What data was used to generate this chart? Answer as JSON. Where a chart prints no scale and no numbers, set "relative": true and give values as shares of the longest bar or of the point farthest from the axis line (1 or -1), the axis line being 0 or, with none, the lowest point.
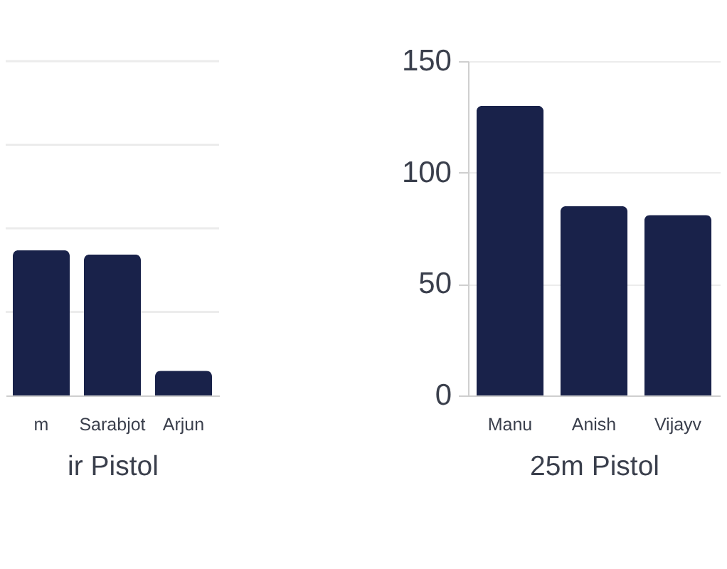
{
  "chart_data": [
    {
      "type": "bar",
      "xlabel": "ir Pistol",
      "categories": [
        "m",
        "Sarabjot",
        "Arjun"
      ],
      "values": [
        1,
        0.97,
        0.17
      ],
      "relative": true,
      "color": "#19224a",
      "ref_lines": [
        {
          "axis": "y",
          "value": 0.575,
          "color": "#ececec"
        },
        {
          "axis": "y",
          "value": 1.15,
          "color": "#ececec"
        },
        {
          "axis": "y",
          "value": 1.725,
          "color": "#ececec"
        },
        {
          "axis": "y",
          "value": 2.3,
          "color": "#ececec"
        }
      ]
    },
    {
      "type": "bar",
      "xlabel": "25m Pistol",
      "categories": [
        "Manu",
        "Anish",
        "Vijayv"
      ],
      "values": [
        130,
        85,
        81
      ],
      "color": "#19224a",
      "ylim": [
        0,
        150
      ],
      "yticks": [
        0,
        50,
        100,
        150
      ],
      "grid": "y"
    }
  ]
}
